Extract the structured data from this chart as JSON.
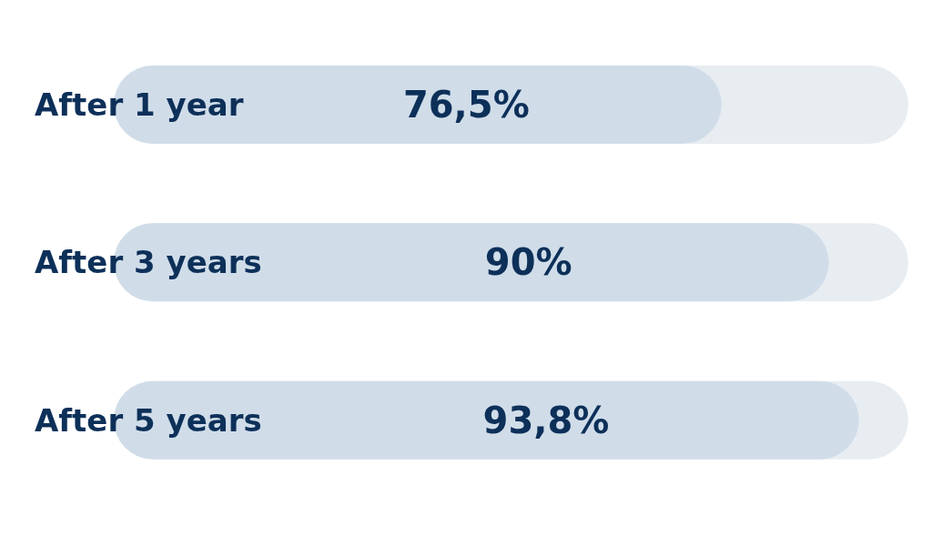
{
  "chart_data": {
    "type": "bar",
    "orientation": "horizontal",
    "categories": [
      "After 1 year",
      "After 3 years",
      "After 5 years"
    ],
    "values": [
      76.5,
      90,
      93.8
    ],
    "value_labels": [
      "76,5%",
      "90%",
      "93,8%"
    ],
    "color": "#d0dde9",
    "xlim": [
      0,
      100
    ],
    "tick_labels": false
  }
}
